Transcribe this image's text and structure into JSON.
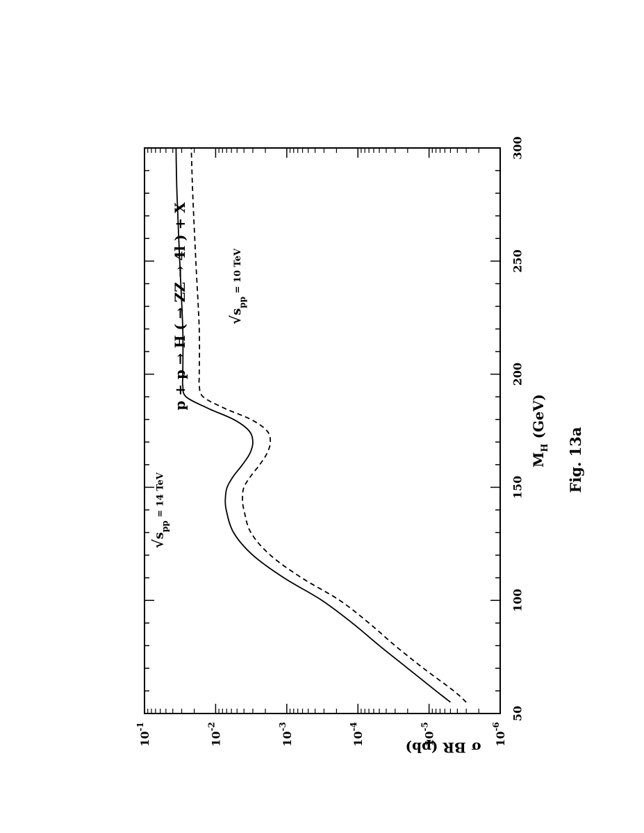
{
  "chart_data": {
    "type": "line",
    "orientation": "rotated 90 degrees counter-clockwise",
    "title": "p + p → H ( → ZZ → 4l ) + X",
    "caption": "Fig. 13a",
    "xlabel": {
      "main": "M",
      "sub": "H",
      "rest": "(GeV)"
    },
    "ylabel": "σ BR (pb)",
    "xlim": [
      50,
      300
    ],
    "ylim_log10": [
      -6,
      -1
    ],
    "y_scale": "log",
    "x_ticks": [
      "50",
      "100",
      "150",
      "200",
      "250",
      "300"
    ],
    "y_ticks": [
      {
        "base": "10",
        "exp": "-6"
      },
      {
        "base": "10",
        "exp": "-5"
      },
      {
        "base": "10",
        "exp": "-4"
      },
      {
        "base": "10",
        "exp": "-3"
      },
      {
        "base": "10",
        "exp": "-2"
      },
      {
        "base": "10",
        "exp": "-1"
      }
    ],
    "grid": false,
    "x": [
      55,
      60,
      70,
      80,
      90,
      100,
      110,
      120,
      130,
      140,
      145,
      150,
      155,
      160,
      165,
      170,
      175,
      180,
      185,
      190,
      195,
      200,
      220,
      250,
      280,
      300
    ],
    "series": [
      {
        "label": {
          "prefix": "√",
          "s": "s",
          "sub": "pp",
          "suffix": "= 14 TeV"
        },
        "style": "solid",
        "color": "#000000",
        "values": [
          5e-06,
          8e-06,
          2e-05,
          5e-05,
          0.00012,
          0.00032,
          0.0011,
          0.003,
          0.0056,
          0.0071,
          0.0073,
          0.0069,
          0.0056,
          0.0042,
          0.0033,
          0.003,
          0.0034,
          0.0056,
          0.013,
          0.026,
          0.029,
          0.029,
          0.029,
          0.032,
          0.035,
          0.036
        ]
      },
      {
        "label": {
          "prefix": "√",
          "s": "s",
          "sub": "pp",
          "suffix": "= 10 TeV"
        },
        "style": "dashed",
        "color": "#000000",
        "values": [
          3e-06,
          4.5e-06,
          1.2e-05,
          3e-05,
          7e-05,
          0.00018,
          0.00062,
          0.0017,
          0.0032,
          0.004,
          0.0042,
          0.004,
          0.0032,
          0.0024,
          0.0019,
          0.0017,
          0.0019,
          0.0032,
          0.0076,
          0.015,
          0.017,
          0.017,
          0.017,
          0.019,
          0.021,
          0.022
        ]
      }
    ]
  }
}
